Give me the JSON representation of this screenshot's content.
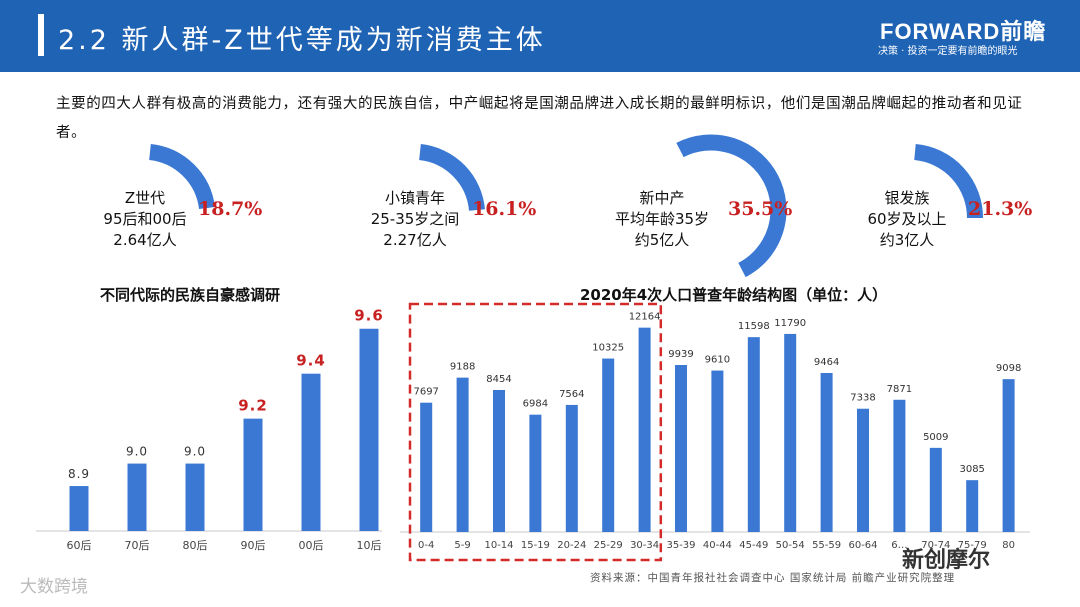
{
  "header": {
    "title": "2.2 新人群-Z世代等成为新消费主体",
    "brand": "FORWARD前瞻",
    "slogan": "决策 · 投资一定要有前瞻的眼光"
  },
  "intro": "主要的四大人群有极高的消费能力，还有强大的民族自信，中产崛起将是国潮品牌进入成长期的最鲜明标识，他们是国潮品牌崛起的推动者和见证者。",
  "groups": [
    {
      "name": "Z世代",
      "line2": "95后和00后",
      "line3": "2.64亿人",
      "share": "18.7%"
    },
    {
      "name": "小镇青年",
      "line2": "25-35岁之间",
      "line3": "2.27亿人",
      "share": "16.1%"
    },
    {
      "name": "新中产",
      "line2": "平均年龄35岁",
      "line3": "约5亿人",
      "share": "35.5%"
    },
    {
      "name": "银发族",
      "line2": "60岁及以上",
      "line3": "约3亿人",
      "share": "21.3%"
    }
  ],
  "colors": {
    "bar": "#3a78d4",
    "header": "#1f63b4",
    "highlight": "#c82121",
    "dashed": "#d42a2a"
  },
  "chart_data": [
    {
      "type": "bar",
      "title": "不同代际的民族自豪感调研",
      "categories": [
        "60后",
        "70后",
        "80后",
        "90后",
        "00后",
        "10后"
      ],
      "values": [
        8.9,
        9.0,
        9.0,
        9.2,
        9.4,
        9.6
      ],
      "value_labels": [
        "8.9",
        "9.0",
        "9.0",
        "9.2",
        "9.4",
        "9.6"
      ],
      "highlighted": [
        false,
        false,
        false,
        true,
        true,
        true
      ],
      "ylim": [
        8.7,
        9.63
      ],
      "xlabel": "",
      "ylabel": ""
    },
    {
      "type": "bar",
      "title": "2020年4次人口普查年龄结构图（单位：人）",
      "categories": [
        "0-4",
        "5-9",
        "10-14",
        "15-19",
        "20-24",
        "25-29",
        "30-34",
        "35-39",
        "40-44",
        "45-49",
        "50-54",
        "55-59",
        "60-64",
        "65-69",
        "70-74",
        "75-79",
        "80+"
      ],
      "category_labels": [
        "0-4",
        "5-9",
        "10-14",
        "15-19",
        "20-24",
        "25-29",
        "30-34",
        "35-39",
        "40-44",
        "45-49",
        "50-54",
        "55-59",
        "60-64",
        "6…",
        "70-74",
        "75-79",
        "80"
      ],
      "values": [
        7697,
        9188,
        8454,
        6984,
        7564,
        10325,
        12164,
        9939,
        9610,
        11598,
        11790,
        9464,
        7338,
        7871,
        5009,
        3085,
        9098
      ],
      "ylim": [
        0,
        12500
      ],
      "highlight_range": [
        "0-4",
        "30-34"
      ],
      "xlabel": "",
      "ylabel": ""
    }
  ],
  "source": "资料来源：中国青年报社社会调查中心 国家统计局 前瞻产业研究院整理",
  "watermarks": {
    "left": "大数跨境",
    "right": "新创摩尔"
  }
}
